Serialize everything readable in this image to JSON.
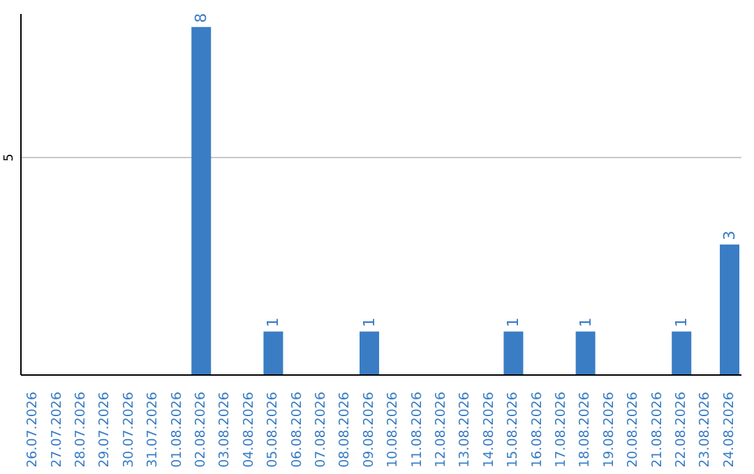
{
  "chart_data": {
    "type": "bar",
    "categories": [
      "26.07.2026",
      "27.07.2026",
      "28.07.2026",
      "29.07.2026",
      "30.07.2026",
      "31.07.2026",
      "01.08.2026",
      "02.08.2026",
      "03.08.2026",
      "04.08.2026",
      "05.08.2026",
      "06.08.2026",
      "07.08.2026",
      "08.08.2026",
      "09.08.2026",
      "10.08.2026",
      "11.08.2026",
      "12.08.2026",
      "13.08.2026",
      "14.08.2026",
      "15.08.2026",
      "16.08.2026",
      "17.08.2026",
      "18.08.2026",
      "19.08.2026",
      "20.08.2026",
      "21.08.2026",
      "22.08.2026",
      "23.08.2026",
      "24.08.2026"
    ],
    "values": [
      0,
      0,
      0,
      0,
      0,
      0,
      0,
      8,
      0,
      0,
      1,
      0,
      0,
      0,
      1,
      0,
      0,
      0,
      0,
      0,
      1,
      0,
      0,
      1,
      0,
      0,
      0,
      1,
      0,
      3
    ],
    "value_labels": [
      null,
      null,
      null,
      null,
      null,
      null,
      null,
      "8",
      null,
      null,
      "1",
      null,
      null,
      null,
      "1",
      null,
      null,
      null,
      null,
      null,
      "1",
      null,
      null,
      "1",
      null,
      null,
      null,
      "1",
      null,
      "3"
    ],
    "color": "#3a7dc4",
    "ylim": [
      0,
      8.3
    ],
    "yticks": [
      5
    ],
    "grid": "y",
    "legend": false
  }
}
